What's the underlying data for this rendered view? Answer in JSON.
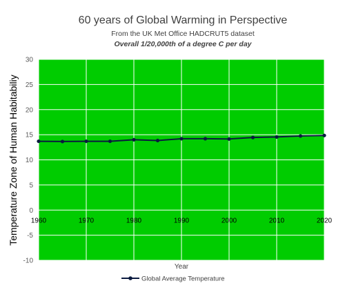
{
  "chart_data": {
    "type": "line",
    "title": "60 years of Global Warming in Perspective",
    "subtitle": "From the  UK Met  Office HADCRUT5  dataset",
    "subtitle2": "Overall 1/20,000th of a degree  C  per day",
    "xlabel": "Year",
    "ylabel": "Temperature Zone of Human Habitabiliy",
    "xlim": [
      1960,
      2020
    ],
    "ylim": [
      -10,
      30
    ],
    "x_ticks": [
      "1960",
      "1970",
      "1980",
      "1990",
      "2000",
      "2010",
      "2020"
    ],
    "y_ticks": [
      "30",
      "25",
      "20",
      "15",
      "10",
      "5",
      "0",
      "-5",
      "-10"
    ],
    "grid": true,
    "plot_background": "#00cc00",
    "grid_color": "#ffffff",
    "legend_position": "bottom",
    "series": [
      {
        "name": "Global Average Temperature",
        "color": "#0a1a3f",
        "x": [
          1960,
          1965,
          1970,
          1975,
          1980,
          1985,
          1990,
          1995,
          2000,
          2005,
          2010,
          2015,
          2020
        ],
        "values": [
          13.7,
          13.65,
          13.7,
          13.7,
          14.0,
          13.85,
          14.2,
          14.2,
          14.15,
          14.45,
          14.55,
          14.75,
          14.85
        ]
      }
    ]
  }
}
